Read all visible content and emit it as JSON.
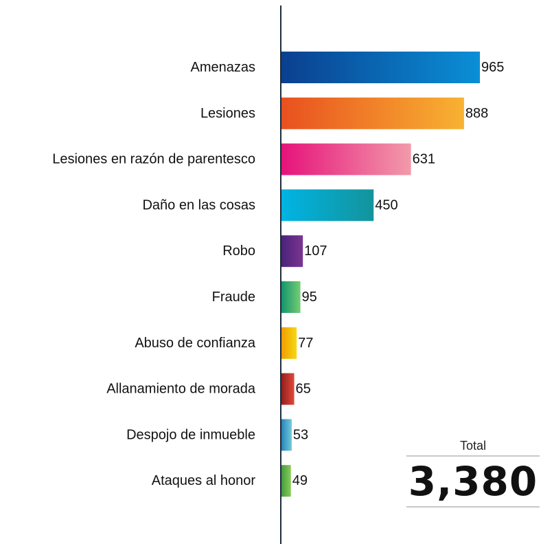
{
  "chart_data": {
    "type": "bar",
    "orientation": "horizontal",
    "categories": [
      "Amenazas",
      "Lesiones",
      "Lesiones en razón de parentesco",
      "Daño en las cosas",
      "Robo",
      "Fraude",
      "Abuso de confianza",
      "Allanamiento de morada",
      "Despojo de inmueble",
      "Ataques al honor"
    ],
    "values": [
      965,
      888,
      631,
      450,
      107,
      95,
      77,
      65,
      53,
      49
    ],
    "value_labels": [
      "965",
      "888",
      "631",
      "450",
      "107",
      "95",
      "77",
      "65",
      "53",
      "49"
    ],
    "gradients": [
      [
        "#0a3f8f",
        "#0a8fd6"
      ],
      [
        "#e9501f",
        "#f8b232"
      ],
      [
        "#e6127a",
        "#f29aaa"
      ],
      [
        "#00b4e4",
        "#14939c"
      ],
      [
        "#4a2277",
        "#7a3592"
      ],
      [
        "#11936c",
        "#74cd73"
      ],
      [
        "#f29a00",
        "#f4d914"
      ],
      [
        "#8f1d1d",
        "#e2483a"
      ],
      [
        "#237fb8",
        "#72cbd8"
      ],
      [
        "#3f9a3a",
        "#89cc5a"
      ]
    ],
    "axis_color": "#1b2a3a",
    "grid": false,
    "legend": "none"
  },
  "total": {
    "label": "Total",
    "value": "3,380"
  }
}
